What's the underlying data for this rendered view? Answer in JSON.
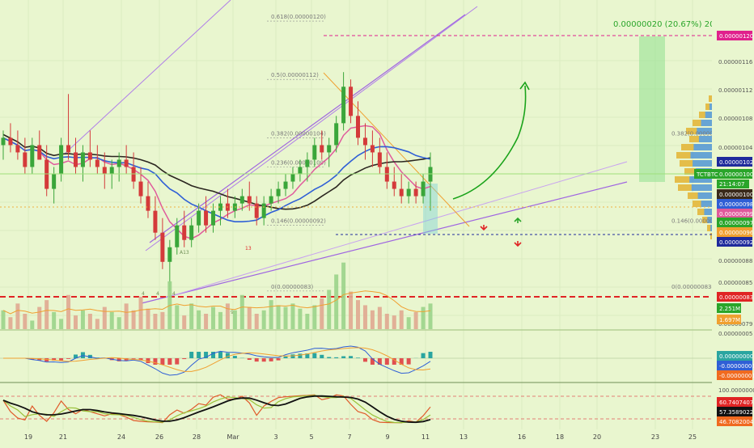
{
  "colors": {
    "background": "#e9f6cf",
    "up": "#3aa63a",
    "down": "#d43a3a",
    "ma_blue": "#2f5fd6",
    "ma_dark": "#2b2620",
    "ma_pink": "#e05a9c",
    "channel": "#9a6fdc",
    "fib": "#8c8c8c",
    "projection": "#1aa31a",
    "magenta_label": "#e0208c",
    "navy_label": "#1e2a9c",
    "red_label": "#e02424"
  },
  "projection_label": "0.00000020 (20.67%) 20",
  "fib_labels": [
    "0.618(0.00000120)",
    "0.5(0.00000112)",
    "0.382(0.00000104)",
    "0.236(0.00000100)",
    "0.146(0.00000092)",
    "0(0.00000083)"
  ],
  "fib_labels_right": [
    "0.382(0.00000104)",
    "0.146(0.00000092)",
    "0(0.00000083)"
  ],
  "price_scale": [
    "0.00000116",
    "0.00000112",
    "0.00000108",
    "0.00000104",
    "0.00000088",
    "0.00000085",
    "0.00000079"
  ],
  "price_badges": [
    {
      "text": "0.00000120",
      "kind": "magenta"
    },
    {
      "text": "0.00000102",
      "kind": "navy"
    },
    {
      "text": "0.00000100",
      "kind": "dark"
    },
    {
      "text": "0.00000098",
      "kind": "blue"
    },
    {
      "text": "0.00000099",
      "kind": "pink"
    },
    {
      "text": "0.00000097",
      "kind": "green"
    },
    {
      "text": "0.00000096",
      "kind": "orange"
    },
    {
      "text": "0.00000092",
      "kind": "navy"
    },
    {
      "text": "0.00000083",
      "kind": "red"
    }
  ],
  "symbol_badge": {
    "symbol": "TCTBTC",
    "price": "0.00000100",
    "countdown": "21:14:07"
  },
  "volume_badges": [
    "2.251M",
    "1.697M"
  ],
  "macd_scale": [
    "0.00000005"
  ],
  "macd_badges": [
    "0.00000000",
    "-0.00000001",
    "-0.00000001"
  ],
  "stoch_scale": [
    "100.00000000"
  ],
  "stoch_badges": [
    "60.74074074",
    "57.35890226",
    "46.70820041"
  ],
  "x_axis_labels": [
    "19",
    "21",
    "24",
    "26",
    "28",
    "Mar",
    "3",
    "5",
    "7",
    "9",
    "11",
    "13",
    "16",
    "18",
    "20",
    "23",
    "25"
  ],
  "small_annotations": [
    "13",
    "4",
    "4",
    "4",
    "9",
    "A13"
  ],
  "chart_data": {
    "type": "candlestick",
    "symbol": "TCTBTC",
    "price_range": [
      7.8e-07,
      1.22e-06
    ],
    "ohlc": [
      [
        1.03e-06,
        1.05e-06,
        1.01e-06,
        1.04e-06
      ],
      [
        1.04e-06,
        1.06e-06,
        1.02e-06,
        1.03e-06
      ],
      [
        1.03e-06,
        1.05e-06,
        1.01e-06,
        1.02e-06
      ],
      [
        1.02e-06,
        1.04e-06,
        9.9e-07,
        1e-06
      ],
      [
        1e-06,
        1.04e-06,
        9.9e-07,
        1.03e-06
      ],
      [
        1.03e-06,
        1.05e-06,
        1.01e-06,
        1.01e-06
      ],
      [
        1.01e-06,
        1.03e-06,
        9.6e-07,
        9.7e-07
      ],
      [
        9.7e-07,
        1e-06,
        9.5e-07,
        9.9e-07
      ],
      [
        9.9e-07,
        1.04e-06,
        9.8e-07,
        1.03e-06
      ],
      [
        1.03e-06,
        1.1e-06,
        1.01e-06,
        1.02e-06
      ],
      [
        1.02e-06,
        1.04e-06,
        9.9e-07,
        1e-06
      ],
      [
        1e-06,
        1.03e-06,
        9.8e-07,
        1.02e-06
      ],
      [
        1.02e-06,
        1.05e-06,
        1e-06,
        1.01e-06
      ],
      [
        1.01e-06,
        1.03e-06,
        9.9e-07,
        1e-06
      ],
      [
        1e-06,
        1.02e-06,
        9.7e-07,
        9.9e-07
      ],
      [
        9.9e-07,
        1.01e-06,
        9.7e-07,
        1e-06
      ],
      [
        1e-06,
        1.02e-06,
        9.8e-07,
        1.01e-06
      ],
      [
        1.01e-06,
        1.03e-06,
        9.9e-07,
        1e-06
      ],
      [
        1e-06,
        1.02e-06,
        9.7e-07,
        9.8e-07
      ],
      [
        9.8e-07,
        1e-06,
        9.5e-07,
        9.6e-07
      ],
      [
        9.6e-07,
        9.8e-07,
        9.3e-07,
        9.4e-07
      ],
      [
        9.4e-07,
        9.6e-07,
        9e-07,
        9.1e-07
      ],
      [
        9.1e-07,
        9.3e-07,
        8.6e-07,
        8.7e-07
      ],
      [
        8.7e-07,
        9e-07,
        8.3e-07,
        8.9e-07
      ],
      [
        8.9e-07,
        9.3e-07,
        8.8e-07,
        9.2e-07
      ],
      [
        9.2e-07,
        9.4e-07,
        8.9e-07,
        9e-07
      ],
      [
        9e-07,
        9.3e-07,
        8.9e-07,
        9.2e-07
      ],
      [
        9.2e-07,
        9.5e-07,
        9.1e-07,
        9.4e-07
      ],
      [
        9.4e-07,
        9.6e-07,
        9.1e-07,
        9.2e-07
      ],
      [
        9.2e-07,
        9.5e-07,
        9.1e-07,
        9.4e-07
      ],
      [
        9.4e-07,
        9.6e-07,
        9.2e-07,
        9.5e-07
      ],
      [
        9.5e-07,
        9.7e-07,
        9.3e-07,
        9.4e-07
      ],
      [
        9.4e-07,
        9.6e-07,
        9.3e-07,
        9.5e-07
      ],
      [
        9.5e-07,
        9.7e-07,
        9.4e-07,
        9.6e-07
      ],
      [
        9.6e-07,
        9.8e-07,
        9.4e-07,
        9.5e-07
      ],
      [
        9.5e-07,
        9.6e-07,
        9.2e-07,
        9.3e-07
      ],
      [
        9.3e-07,
        9.6e-07,
        9.2e-07,
        9.5e-07
      ],
      [
        9.5e-07,
        9.7e-07,
        9.4e-07,
        9.6e-07
      ],
      [
        9.6e-07,
        9.8e-07,
        9.5e-07,
        9.7e-07
      ],
      [
        9.7e-07,
        9.9e-07,
        9.6e-07,
        9.8e-07
      ],
      [
        9.8e-07,
        1e-06,
        9.7e-07,
        9.9e-07
      ],
      [
        9.9e-07,
        1.01e-06,
        9.8e-07,
        1e-06
      ],
      [
        1e-06,
        1.02e-06,
        9.8e-07,
        1.01e-06
      ],
      [
        1.01e-06,
        1.04e-06,
        1e-06,
        1.03e-06
      ],
      [
        1.03e-06,
        1.05e-06,
        1.01e-06,
        1.02e-06
      ],
      [
        1.02e-06,
        1.04e-06,
        1e-06,
        1.03e-06
      ],
      [
        1.03e-06,
        1.07e-06,
        1.02e-06,
        1.06e-06
      ],
      [
        1.06e-06,
        1.13e-06,
        1.05e-06,
        1.11e-06
      ],
      [
        1.11e-06,
        1.12e-06,
        1.06e-06,
        1.07e-06
      ],
      [
        1.07e-06,
        1.09e-06,
        1.03e-06,
        1.04e-06
      ],
      [
        1.04e-06,
        1.06e-06,
        1.01e-06,
        1.03e-06
      ],
      [
        1.03e-06,
        1.05e-06,
        1e-06,
        1.02e-06
      ],
      [
        1.02e-06,
        1.04e-06,
        9.9e-07,
        1e-06
      ],
      [
        1e-06,
        1.02e-06,
        9.7e-07,
        9.8e-07
      ],
      [
        9.8e-07,
        1e-06,
        9.6e-07,
        9.7e-07
      ],
      [
        9.7e-07,
        9.9e-07,
        9.5e-07,
        9.6e-07
      ],
      [
        9.6e-07,
        9.8e-07,
        9.5e-07,
        9.7e-07
      ],
      [
        9.7e-07,
        9.8e-07,
        9.5e-07,
        9.6e-07
      ],
      [
        9.6e-07,
        9.9e-07,
        9.5e-07,
        9.8e-07
      ],
      [
        9.8e-07,
        1.02e-06,
        9.4e-07,
        1e-06
      ]
    ],
    "overlays": [
      "ma_blue",
      "ma_dark",
      "ma_pink"
    ],
    "fib_levels": [
      {
        "ratio": 0.618,
        "price": 1.2e-06
      },
      {
        "ratio": 0.5,
        "price": 1.12e-06
      },
      {
        "ratio": 0.382,
        "price": 1.04e-06
      },
      {
        "ratio": 0.236,
        "price": 1e-06
      },
      {
        "ratio": 0.146,
        "price": 9.2e-07
      },
      {
        "ratio": 0,
        "price": 8.3e-07
      }
    ],
    "target": {
      "price": 1.2e-06,
      "change": 2e-07,
      "percent": 20.67,
      "bars": 20
    },
    "stochastic": {
      "k": 60.74074074,
      "d": 57.35890226,
      "third": 46.70820041
    }
  }
}
